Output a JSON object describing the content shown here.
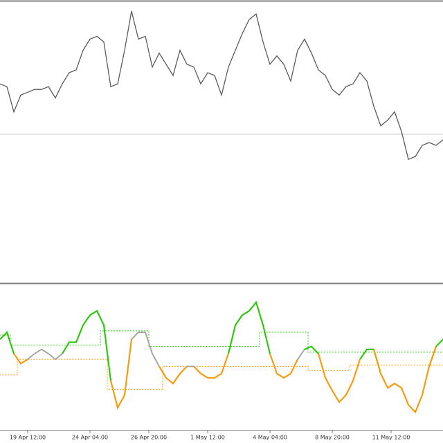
{
  "chart_data": [
    {
      "type": "line",
      "color": "#5a5a5a",
      "values": [
        71,
        70,
        61,
        67,
        68,
        69,
        69,
        70,
        66,
        71,
        75,
        76,
        83,
        87,
        88,
        86,
        70,
        71,
        83,
        97,
        87,
        88,
        77,
        82,
        78,
        74,
        83,
        78,
        77,
        71,
        75,
        74,
        67,
        77,
        83,
        89,
        94,
        96,
        86,
        78,
        81,
        78,
        72,
        83,
        87,
        82,
        76,
        74,
        69,
        67,
        70,
        71,
        75,
        72,
        63,
        56,
        58,
        61,
        54,
        44,
        45,
        49,
        50,
        49,
        51
      ],
      "ylim": [
        0,
        100
      ],
      "hline": {
        "value": 53,
        "color": "#c8c8c8"
      }
    },
    {
      "type": "oscillator",
      "color": "#a6a6a6",
      "up_color": "#22cc00",
      "down_color": "#ff9900",
      "values": [
        62,
        67,
        52,
        45,
        48,
        52,
        55,
        52,
        48,
        52,
        60,
        60,
        72,
        79,
        82,
        72,
        33,
        14,
        23,
        62,
        67,
        67,
        52,
        43,
        35,
        31,
        38,
        43,
        43,
        38,
        35,
        35,
        38,
        52,
        72,
        79,
        82,
        88,
        72,
        52,
        38,
        35,
        38,
        48,
        55,
        57,
        52,
        35,
        26,
        18,
        23,
        33,
        48,
        55,
        55,
        38,
        28,
        31,
        28,
        16,
        11,
        23,
        43,
        57,
        62
      ],
      "upper": [
        65,
        65,
        58,
        58,
        58,
        58,
        58,
        58,
        58,
        58,
        58,
        58,
        58,
        58,
        58,
        68,
        68,
        68,
        68,
        68,
        68,
        68,
        57,
        57,
        57,
        57,
        57,
        57,
        57,
        57,
        57,
        57,
        57,
        57,
        57,
        57,
        57,
        57,
        67,
        67,
        67,
        67,
        67,
        67,
        67,
        53,
        53,
        53,
        53,
        53,
        53,
        53,
        53,
        53,
        53,
        53,
        53,
        53,
        53,
        53,
        53,
        53,
        53,
        53,
        53
      ],
      "lower": [
        37,
        37,
        37,
        48,
        48,
        48,
        48,
        48,
        48,
        48,
        48,
        48,
        48,
        48,
        48,
        48,
        27,
        27,
        27,
        27,
        27,
        27,
        27,
        27,
        43,
        43,
        43,
        43,
        43,
        43,
        43,
        43,
        43,
        43,
        43,
        43,
        43,
        43,
        43,
        43,
        43,
        43,
        43,
        43,
        43,
        40,
        40,
        40,
        40,
        40,
        40,
        44,
        44,
        44,
        44,
        44,
        44,
        44,
        44,
        44,
        44,
        44,
        44,
        44,
        44
      ],
      "ylim": [
        0,
        100
      ],
      "xticks": [
        {
          "value": 4,
          "label": "19 Apr 12:00"
        },
        {
          "value": 13,
          "label": "24 Apr 04:00"
        },
        {
          "value": 21.5,
          "label": "26 Apr 20:00"
        },
        {
          "value": 30,
          "label": "1 May 12:00"
        },
        {
          "value": 39,
          "label": "4 May 04:00"
        },
        {
          "value": 48,
          "label": "8 May 20:00"
        },
        {
          "value": 56.5,
          "label": "11 May 12:00"
        }
      ]
    }
  ]
}
